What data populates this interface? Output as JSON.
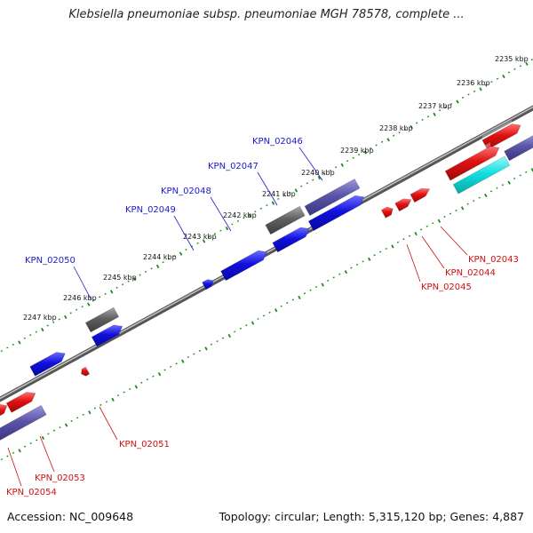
{
  "title": "Klebsiella pneumoniae subsp. pneumoniae MGH 78578, complete ...",
  "footer": {
    "accession": "Accession: NC_009648",
    "summary": "Topology: circular; Length: 5,315,120 bp; Genes: 4,887"
  },
  "colors": {
    "forward_cds": "#1010e0",
    "reverse_cds": "#e01010",
    "pseudo_gray": "#606060",
    "misc_purple": "#5a55a8",
    "rna_cyan": "#10e0e0",
    "ruler": "#1a8a1a",
    "backbone": "#7a7a7a"
  },
  "ruler_ticks": [
    {
      "label": "2235 kbp",
      "pos": 2235
    },
    {
      "label": "2236 kbp",
      "pos": 2236
    },
    {
      "label": "2237 kbp",
      "pos": 2237
    },
    {
      "label": "2238 kbp",
      "pos": 2238
    },
    {
      "label": "2239 kbp",
      "pos": 2239
    },
    {
      "label": "2240 kbp",
      "pos": 2240
    },
    {
      "label": "2241 kbp",
      "pos": 2241
    },
    {
      "label": "2242 kbp",
      "pos": 2242
    },
    {
      "label": "2243 kbp",
      "pos": 2243
    },
    {
      "label": "2244 kbp",
      "pos": 2244
    },
    {
      "label": "2245 kbp",
      "pos": 2245
    },
    {
      "label": "2246 kbp",
      "pos": 2246
    },
    {
      "label": "2247 kbp",
      "pos": 2247
    }
  ],
  "gene_labels": [
    {
      "id": "KPN_02043",
      "strand": "reverse"
    },
    {
      "id": "KPN_02044",
      "strand": "reverse"
    },
    {
      "id": "KPN_02045",
      "strand": "reverse"
    },
    {
      "id": "KPN_02046",
      "strand": "forward"
    },
    {
      "id": "KPN_02047",
      "strand": "forward"
    },
    {
      "id": "KPN_02048",
      "strand": "forward"
    },
    {
      "id": "KPN_02049",
      "strand": "forward"
    },
    {
      "id": "KPN_02050",
      "strand": "forward"
    },
    {
      "id": "KPN_02051",
      "strand": "reverse"
    },
    {
      "id": "KPN_02053",
      "strand": "reverse"
    },
    {
      "id": "KPN_02054",
      "strand": "reverse"
    }
  ]
}
